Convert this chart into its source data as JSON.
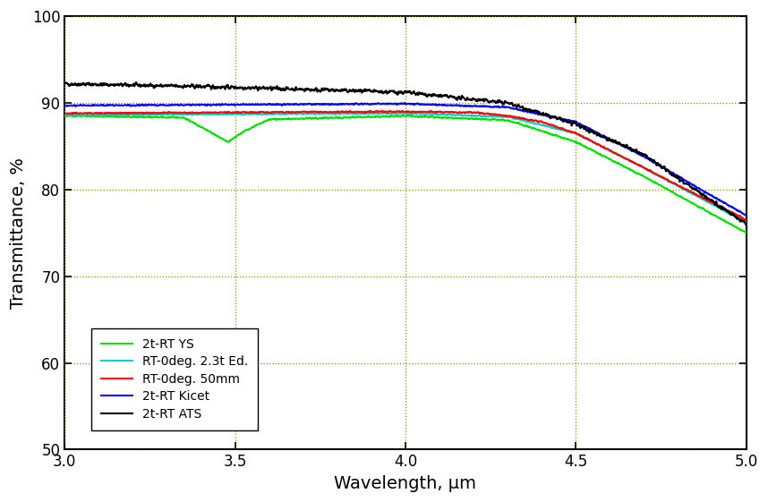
{
  "title": "",
  "xlabel": "Wavelength, μm",
  "ylabel": "Transmittance, %",
  "xlim": [
    3.0,
    5.0
  ],
  "ylim": [
    50,
    100
  ],
  "yticks": [
    50,
    60,
    70,
    80,
    90,
    100
  ],
  "xticks": [
    3.0,
    3.5,
    4.0,
    4.5,
    5.0
  ],
  "grid_color": "#8b8b00",
  "background_color": "#ffffff",
  "series": [
    {
      "label": "2t-RT ATS",
      "color": "#000000",
      "linewidth": 1.5
    },
    {
      "label": "RT-0deg. 50mm",
      "color": "#ff0000",
      "linewidth": 1.5
    },
    {
      "label": "2t-RT Kicet",
      "color": "#0000ff",
      "linewidth": 1.5
    },
    {
      "label": "2t-RT YS",
      "color": "#00dd00",
      "linewidth": 1.5
    },
    {
      "label": "RT-0deg. 2.3t Ed.",
      "color": "#00cccc",
      "linewidth": 1.5
    }
  ],
  "keypoints": {
    "ATS": [
      [
        3.0,
        92.2
      ],
      [
        3.5,
        91.8
      ],
      [
        4.0,
        91.2
      ],
      [
        4.3,
        90.0
      ],
      [
        4.5,
        87.5
      ],
      [
        4.7,
        84.0
      ],
      [
        5.0,
        76.0
      ]
    ],
    "Red": [
      [
        3.0,
        88.8
      ],
      [
        3.5,
        88.9
      ],
      [
        4.0,
        89.0
      ],
      [
        4.2,
        88.9
      ],
      [
        4.3,
        88.5
      ],
      [
        4.4,
        87.8
      ],
      [
        4.5,
        86.5
      ],
      [
        4.7,
        82.5
      ],
      [
        5.0,
        76.5
      ]
    ],
    "Blue": [
      [
        3.0,
        89.7
      ],
      [
        3.5,
        89.8
      ],
      [
        4.0,
        89.9
      ],
      [
        4.3,
        89.5
      ],
      [
        4.5,
        87.8
      ],
      [
        4.7,
        83.8
      ],
      [
        5.0,
        77.0
      ]
    ],
    "Green": [
      [
        3.0,
        88.5
      ],
      [
        3.35,
        88.3
      ],
      [
        3.43,
        86.6
      ],
      [
        3.48,
        85.5
      ],
      [
        3.53,
        86.8
      ],
      [
        3.6,
        88.1
      ],
      [
        4.0,
        88.5
      ],
      [
        4.3,
        88.0
      ],
      [
        4.5,
        85.5
      ],
      [
        4.7,
        81.5
      ],
      [
        5.0,
        75.0
      ]
    ],
    "Cyan": [
      [
        3.0,
        88.6
      ],
      [
        3.5,
        88.7
      ],
      [
        4.0,
        88.8
      ],
      [
        4.3,
        88.4
      ],
      [
        4.5,
        86.5
      ],
      [
        4.7,
        82.5
      ],
      [
        5.0,
        76.2
      ]
    ]
  }
}
